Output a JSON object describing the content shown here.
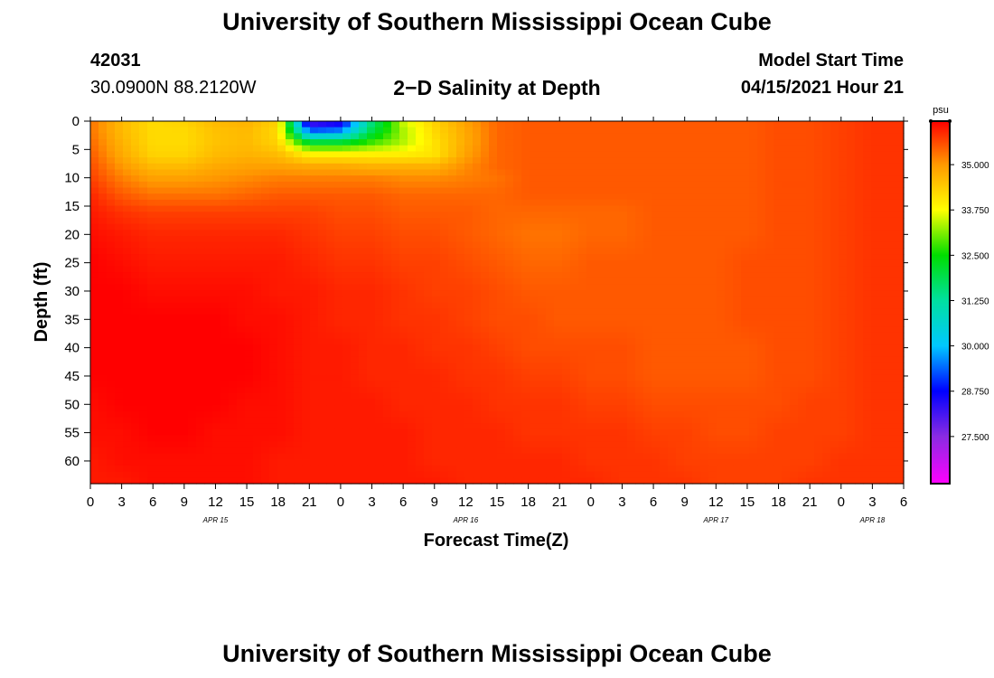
{
  "header": {
    "title": "University of Southern Mississippi Ocean Cube",
    "station_id": "42031",
    "station_coords": "30.0900N  88.2120W",
    "plot_title": "2−D Salinity at Depth",
    "model_start_label": "Model Start Time",
    "model_start_value": "04/15/2021 Hour 21"
  },
  "footer": {
    "title": "University of Southern Mississippi Ocean Cube"
  },
  "chart_data": {
    "type": "heatmap",
    "title": "2−D Salinity at Depth",
    "xlabel": "Forecast Time(Z)",
    "ylabel": "Depth (ft)",
    "x_ticks": [
      "0",
      "3",
      "6",
      "9",
      "12",
      "15",
      "18",
      "21",
      "0",
      "3",
      "6",
      "9",
      "12",
      "15",
      "18",
      "21",
      "0",
      "3",
      "6",
      "9",
      "12",
      "15",
      "18",
      "21",
      "0",
      "3",
      "6"
    ],
    "date_labels": [
      {
        "label": "APR 15",
        "tick_index": 4
      },
      {
        "label": "APR 16",
        "tick_index": 12
      },
      {
        "label": "APR 17",
        "tick_index": 20
      },
      {
        "label": "APR 18",
        "tick_index": 25
      }
    ],
    "xlim_hours": [
      0,
      78
    ],
    "y_ticks": [
      0,
      5,
      10,
      15,
      20,
      25,
      30,
      35,
      40,
      45,
      50,
      55,
      60
    ],
    "ylim": [
      0,
      64
    ],
    "colorbar": {
      "unit": "psu",
      "min": 26.2,
      "max": 36.2,
      "labels": [
        "35.000",
        "33.750",
        "32.500",
        "31.250",
        "30.000",
        "28.750",
        "27.500"
      ],
      "stops": [
        {
          "value": 26.2,
          "color": "#ff00ff"
        },
        {
          "value": 27.5,
          "color": "#8a2be2"
        },
        {
          "value": 28.75,
          "color": "#0000ff"
        },
        {
          "value": 30.0,
          "color": "#00c8ff"
        },
        {
          "value": 31.25,
          "color": "#00e0a0"
        },
        {
          "value": 32.5,
          "color": "#00dd00"
        },
        {
          "value": 33.75,
          "color": "#ffff00"
        },
        {
          "value": 35.0,
          "color": "#ff9900"
        },
        {
          "value": 36.2,
          "color": "#ff0000"
        }
      ]
    },
    "depths_ft": [
      0,
      2,
      4,
      6,
      8,
      10,
      13,
      16,
      20,
      25,
      30,
      35,
      40,
      45,
      50,
      55,
      60,
      64
    ],
    "times_hours": [
      0,
      3,
      6,
      9,
      12,
      15,
      18,
      21,
      24,
      27,
      30,
      33,
      36,
      39,
      42,
      45,
      48,
      51,
      54,
      57,
      60,
      63,
      66,
      69,
      72,
      75,
      78
    ],
    "values": [
      [
        35.3,
        34.6,
        34.2,
        34.3,
        34.6,
        34.7,
        34.3,
        27.8,
        28.2,
        31.5,
        33.5,
        34.3,
        34.9,
        35.4,
        35.5,
        35.5,
        35.5,
        35.5,
        35.5,
        35.5,
        35.5,
        35.5,
        35.6,
        35.6,
        35.7,
        35.8,
        35.8
      ],
      [
        35.3,
        34.6,
        34.2,
        34.2,
        34.5,
        34.6,
        34.2,
        29.6,
        29.8,
        32.0,
        33.3,
        34.2,
        34.8,
        35.4,
        35.5,
        35.5,
        35.5,
        35.5,
        35.5,
        35.5,
        35.5,
        35.5,
        35.6,
        35.6,
        35.7,
        35.8,
        35.8
      ],
      [
        35.4,
        34.7,
        34.2,
        34.2,
        34.5,
        34.6,
        34.3,
        32.4,
        32.4,
        32.9,
        33.4,
        34.1,
        34.8,
        35.4,
        35.5,
        35.5,
        35.5,
        35.5,
        35.5,
        35.5,
        35.5,
        35.5,
        35.6,
        35.6,
        35.7,
        35.8,
        35.8
      ],
      [
        35.5,
        34.8,
        34.3,
        34.3,
        34.6,
        34.7,
        34.6,
        34.0,
        34.0,
        34.0,
        34.0,
        34.1,
        34.9,
        35.4,
        35.5,
        35.5,
        35.5,
        35.5,
        35.5,
        35.5,
        35.5,
        35.5,
        35.6,
        35.6,
        35.7,
        35.8,
        35.8
      ],
      [
        35.6,
        35.0,
        34.6,
        34.6,
        34.8,
        34.9,
        34.9,
        34.8,
        34.8,
        34.7,
        34.7,
        34.7,
        35.1,
        35.4,
        35.5,
        35.5,
        35.5,
        35.5,
        35.5,
        35.5,
        35.5,
        35.5,
        35.6,
        35.6,
        35.7,
        35.8,
        35.8
      ],
      [
        35.7,
        35.2,
        34.9,
        34.9,
        35.0,
        35.1,
        35.2,
        35.2,
        35.2,
        35.2,
        35.1,
        35.1,
        35.2,
        35.3,
        35.5,
        35.5,
        35.5,
        35.5,
        35.5,
        35.5,
        35.5,
        35.5,
        35.6,
        35.6,
        35.7,
        35.8,
        35.8
      ],
      [
        35.9,
        35.5,
        35.3,
        35.3,
        35.3,
        35.4,
        35.5,
        35.5,
        35.5,
        35.5,
        35.4,
        35.4,
        35.4,
        35.4,
        35.5,
        35.5,
        35.5,
        35.5,
        35.5,
        35.5,
        35.5,
        35.5,
        35.6,
        35.6,
        35.7,
        35.8,
        35.8
      ],
      [
        36.0,
        35.8,
        35.7,
        35.7,
        35.7,
        35.7,
        35.7,
        35.7,
        35.6,
        35.6,
        35.5,
        35.5,
        35.5,
        35.4,
        35.4,
        35.4,
        35.4,
        35.4,
        35.5,
        35.5,
        35.5,
        35.5,
        35.6,
        35.6,
        35.7,
        35.8,
        35.8
      ],
      [
        36.1,
        36.0,
        35.9,
        35.9,
        35.9,
        35.9,
        35.9,
        35.8,
        35.7,
        35.7,
        35.6,
        35.6,
        35.5,
        35.4,
        35.3,
        35.3,
        35.4,
        35.4,
        35.5,
        35.5,
        35.5,
        35.5,
        35.6,
        35.6,
        35.7,
        35.8,
        35.8
      ],
      [
        36.2,
        36.1,
        36.0,
        36.0,
        36.0,
        36.0,
        36.0,
        35.9,
        35.8,
        35.8,
        35.7,
        35.7,
        35.6,
        35.5,
        35.4,
        35.4,
        35.5,
        35.5,
        35.5,
        35.5,
        35.5,
        35.6,
        35.6,
        35.6,
        35.7,
        35.8,
        35.8
      ],
      [
        36.2,
        36.2,
        36.1,
        36.1,
        36.1,
        36.1,
        36.0,
        36.0,
        35.9,
        35.9,
        35.8,
        35.7,
        35.7,
        35.6,
        35.5,
        35.5,
        35.5,
        35.5,
        35.5,
        35.5,
        35.5,
        35.6,
        35.6,
        35.6,
        35.7,
        35.8,
        35.8
      ],
      [
        36.2,
        36.2,
        36.2,
        36.2,
        36.2,
        36.1,
        36.1,
        36.0,
        35.9,
        35.9,
        35.8,
        35.8,
        35.7,
        35.6,
        35.6,
        35.5,
        35.5,
        35.5,
        35.5,
        35.5,
        35.5,
        35.6,
        35.6,
        35.6,
        35.7,
        35.8,
        35.8
      ],
      [
        36.2,
        36.2,
        36.2,
        36.2,
        36.2,
        36.2,
        36.1,
        36.0,
        36.0,
        35.9,
        35.9,
        35.8,
        35.8,
        35.7,
        35.6,
        35.6,
        35.6,
        35.6,
        35.5,
        35.5,
        35.5,
        35.5,
        35.6,
        35.6,
        35.7,
        35.8,
        35.8
      ],
      [
        36.2,
        36.2,
        36.2,
        36.2,
        36.2,
        36.2,
        36.1,
        36.0,
        36.0,
        35.9,
        35.9,
        35.9,
        35.8,
        35.8,
        35.7,
        35.7,
        35.6,
        35.6,
        35.5,
        35.5,
        35.5,
        35.5,
        35.6,
        35.6,
        35.7,
        35.8,
        35.8
      ],
      [
        36.1,
        36.2,
        36.2,
        36.2,
        36.2,
        36.1,
        36.1,
        36.0,
        36.0,
        36.0,
        35.9,
        35.9,
        35.9,
        35.8,
        35.8,
        35.8,
        35.7,
        35.7,
        35.6,
        35.6,
        35.6,
        35.6,
        35.6,
        35.7,
        35.7,
        35.8,
        35.8
      ],
      [
        36.1,
        36.1,
        36.2,
        36.2,
        36.1,
        36.1,
        36.1,
        36.0,
        36.0,
        36.0,
        36.0,
        35.9,
        35.9,
        35.9,
        35.8,
        35.8,
        35.8,
        35.8,
        35.7,
        35.7,
        35.6,
        35.6,
        35.7,
        35.7,
        35.7,
        35.8,
        35.8
      ],
      [
        36.0,
        36.1,
        36.1,
        36.1,
        36.1,
        36.1,
        36.0,
        36.0,
        36.0,
        36.0,
        36.0,
        35.9,
        35.9,
        35.9,
        35.9,
        35.9,
        35.8,
        35.8,
        35.8,
        35.7,
        35.7,
        35.7,
        35.7,
        35.7,
        35.8,
        35.8,
        35.8
      ],
      [
        36.0,
        36.0,
        36.1,
        36.1,
        36.1,
        36.1,
        36.0,
        36.0,
        36.0,
        36.0,
        36.0,
        36.0,
        35.9,
        35.9,
        35.9,
        35.9,
        35.9,
        35.8,
        35.8,
        35.8,
        35.7,
        35.7,
        35.7,
        35.8,
        35.8,
        35.8,
        35.8
      ]
    ]
  }
}
